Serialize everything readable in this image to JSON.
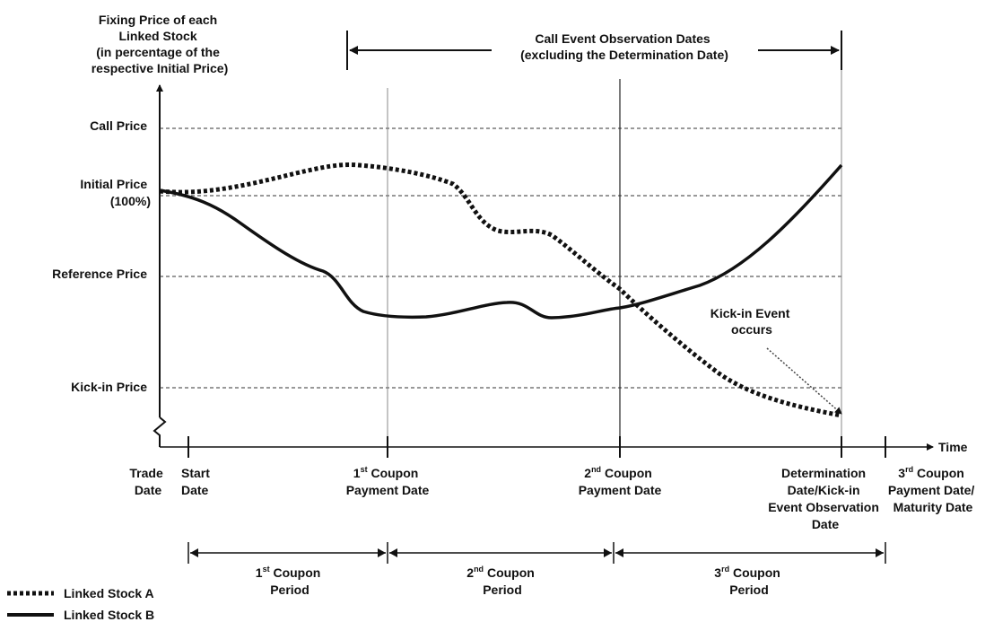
{
  "y_axis_title": [
    "Fixing Price of each",
    "Linked Stock",
    "(in percentage of the",
    "respective Initial Price)"
  ],
  "observation_label": [
    "Call Event Observation Dates",
    "(excluding the Determination Date)"
  ],
  "price_levels": {
    "call": "Call Price",
    "initial": [
      "Initial Price",
      "(100%)"
    ],
    "reference": "Reference Price",
    "kickin": "Kick-in Price"
  },
  "time_label": "Time",
  "dates": {
    "trade": [
      "Trade",
      "Date"
    ],
    "start": [
      "Start",
      "Date"
    ],
    "coupon1": {
      "num": "1",
      "sup": "st",
      "line1_rest": " Coupon",
      "line2": "Payment Date"
    },
    "coupon2": {
      "num": "2",
      "sup": "nd",
      "line1_rest": " Coupon",
      "line2": "Payment Date"
    },
    "determination": [
      "Determination",
      "Date/Kick-in",
      "Event Observation",
      "Date"
    ],
    "coupon3": {
      "num": "3",
      "sup": "rd",
      "line1_rest": " Coupon",
      "line2": "Payment Date/",
      "line3": "Maturity Date"
    }
  },
  "periods": [
    {
      "num": "1",
      "sup": "st",
      "rest": " Coupon",
      "line2": "Period"
    },
    {
      "num": "2",
      "sup": "nd",
      "rest": " Coupon",
      "line2": "Period"
    },
    {
      "num": "3",
      "sup": "rd",
      "rest": " Coupon",
      "line2": "Period"
    }
  ],
  "kickin_event": [
    "Kick-in Event",
    "occurs"
  ],
  "legend": {
    "stock_a": "Linked Stock A",
    "stock_b": "Linked Stock B"
  }
}
